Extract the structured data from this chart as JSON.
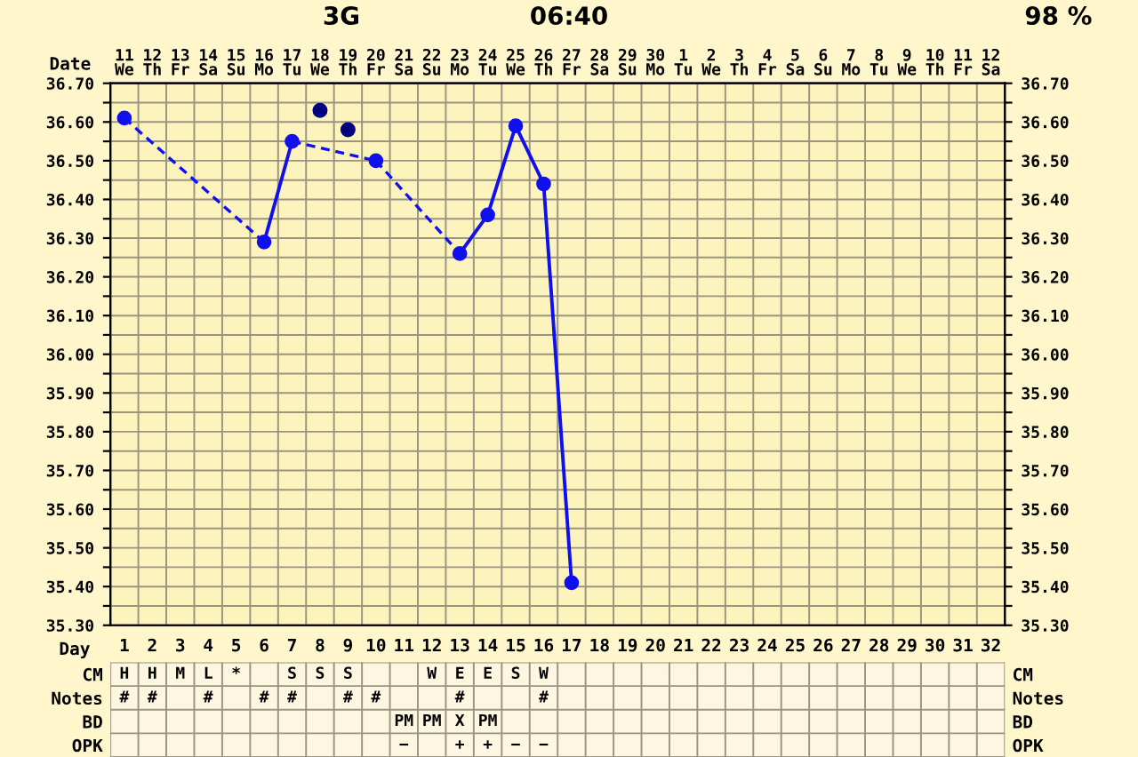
{
  "chart_data": [
    {
      "type": "line",
      "xlabel": "Date",
      "annotations": [
        "06:40",
        "3G",
        "98 %"
      ],
      "categories": [
        "11\nWe",
        "12\nTh",
        "13\nFr",
        "14\nSa",
        "15\nSu",
        "16\nMo",
        "17\nTu",
        "18\nWe",
        "19\nTh",
        "20\nFr",
        "21\nSa",
        "22\nSu",
        "23\nMo",
        "24\nTu",
        "25\nWe",
        "26\nTh",
        "27\nFr",
        "28\nSa",
        "29\nSu",
        "30\nMo",
        "1\nTu",
        "2\nWe",
        "3\nTh",
        "4\nFr",
        "5\nSa",
        "6\nSu",
        "7\nMo",
        "8\nTu",
        "9\nWe",
        "10\nTh",
        "11\nFr",
        "12\nSa"
      ],
      "ylim": [
        35.3,
        36.7
      ],
      "yticks": [
        {
          "value": 35.3,
          "label": "35.30"
        },
        {
          "value": 35.35,
          "label": null
        },
        {
          "value": 35.4,
          "label": "35.40"
        },
        {
          "value": 35.45,
          "label": null
        },
        {
          "value": 35.5,
          "label": "35.50"
        },
        {
          "value": 35.55,
          "label": null
        },
        {
          "value": 35.6,
          "label": "35.60"
        },
        {
          "value": 35.65,
          "label": null
        },
        {
          "value": 35.7,
          "label": "35.70"
        },
        {
          "value": 35.75,
          "label": null
        },
        {
          "value": 35.8,
          "label": "35.80"
        },
        {
          "value": 35.85,
          "label": null
        },
        {
          "value": 35.9,
          "label": "35.90"
        },
        {
          "value": 35.95,
          "label": null
        },
        {
          "value": 36.0,
          "label": "36.00"
        },
        {
          "value": 36.05,
          "label": null
        },
        {
          "value": 36.1,
          "label": "36.10"
        },
        {
          "value": 36.15,
          "label": null
        },
        {
          "value": 36.2,
          "label": "36.20"
        },
        {
          "value": 36.25,
          "label": null
        },
        {
          "value": 36.3,
          "label": "36.30"
        },
        {
          "value": 36.35,
          "label": null
        },
        {
          "value": 36.4,
          "label": "36.40"
        },
        {
          "value": 36.45,
          "label": null
        },
        {
          "value": 36.5,
          "label": "36.50"
        },
        {
          "value": 36.55,
          "label": null
        },
        {
          "value": 36.6,
          "label": "36.60"
        },
        {
          "value": 36.65,
          "label": null
        },
        {
          "value": 36.7,
          "label": "36.70"
        }
      ],
      "y2lim": [
        35.3,
        36.7
      ],
      "y2ticks": [
        {
          "value": 35.3,
          "label": "35.30"
        },
        {
          "value": 35.35,
          "label": null
        },
        {
          "value": 35.4,
          "label": "35.40"
        },
        {
          "value": 35.45,
          "label": null
        },
        {
          "value": 35.5,
          "label": "35.50"
        },
        {
          "value": 35.55,
          "label": null
        },
        {
          "value": 35.6,
          "label": "35.60"
        },
        {
          "value": 35.65,
          "label": null
        },
        {
          "value": 35.7,
          "label": "35.70"
        },
        {
          "value": 35.75,
          "label": null
        },
        {
          "value": 35.8,
          "label": "35.80"
        },
        {
          "value": 35.85,
          "label": null
        },
        {
          "value": 35.9,
          "label": "35.90"
        },
        {
          "value": 35.95,
          "label": null
        },
        {
          "value": 36.0,
          "label": "36.00"
        },
        {
          "value": 36.05,
          "label": null
        },
        {
          "value": 36.1,
          "label": "36.10"
        },
        {
          "value": 36.15,
          "label": null
        },
        {
          "value": 36.2,
          "label": "36.20"
        },
        {
          "value": 36.25,
          "label": null
        },
        {
          "value": 36.3,
          "label": "36.30"
        },
        {
          "value": 36.35,
          "label": null
        },
        {
          "value": 36.4,
          "label": "36.40"
        },
        {
          "value": 36.45,
          "label": null
        },
        {
          "value": 36.5,
          "label": "36.50"
        },
        {
          "value": 36.55,
          "label": null
        },
        {
          "value": 36.6,
          "label": "36.60"
        },
        {
          "value": 36.65,
          "label": null
        },
        {
          "value": 36.7,
          "label": "36.70"
        }
      ],
      "grid": true,
      "marker": "circle",
      "series": [
        {
          "type": "line",
          "line_style": "solid",
          "color": "#1010ee",
          "values": [
            36.61,
            null,
            null,
            null,
            null,
            36.29,
            36.55,
            null,
            null,
            36.5,
            null,
            null,
            36.26,
            36.36,
            36.59,
            36.44,
            35.41,
            null,
            null,
            null,
            null,
            null,
            null,
            null,
            null,
            null,
            null,
            null,
            null,
            null,
            null,
            null
          ]
        },
        {
          "type": "scatter",
          "color": "#000080",
          "values": [
            null,
            null,
            null,
            null,
            null,
            null,
            null,
            36.63,
            36.58,
            null,
            null,
            null,
            null,
            null,
            null,
            null,
            null,
            null,
            null,
            null,
            null,
            null,
            null,
            null,
            null,
            null,
            null,
            null,
            null,
            null,
            null,
            null
          ]
        }
      ]
    },
    {
      "type": "heatmap",
      "tick_labels": "x",
      "xlabel": "Day",
      "categories": [
        "1",
        "2",
        "3",
        "4",
        "5",
        "6",
        "7",
        "8",
        "9",
        "10",
        "11",
        "12",
        "13",
        "14",
        "15",
        "16",
        "17",
        "18",
        "19",
        "20",
        "21",
        "22",
        "23",
        "24",
        "25",
        "26",
        "27",
        "28",
        "29",
        "30",
        "31",
        "32"
      ],
      "y_categories": [
        "CM",
        "Notes",
        "BD",
        "OPK"
      ],
      "y2_categories": [
        "CM",
        "Notes",
        "BD",
        "OPK"
      ],
      "cells": [
        [
          null,
          null,
          null,
          null,
          null,
          null,
          null,
          null,
          null,
          null,
          null,
          null,
          null,
          null,
          null,
          null,
          null,
          null,
          null,
          null,
          null,
          null,
          null,
          null,
          null,
          null,
          null,
          null,
          null,
          null,
          null,
          null
        ],
        [
          null,
          null,
          null,
          null,
          null,
          null,
          null,
          null,
          null,
          null,
          null,
          null,
          null,
          null,
          null,
          null,
          null,
          null,
          null,
          null,
          null,
          null,
          null,
          null,
          null,
          null,
          null,
          null,
          null,
          null,
          null,
          null
        ],
        [
          null,
          null,
          null,
          null,
          null,
          null,
          null,
          null,
          null,
          null,
          null,
          null,
          null,
          null,
          null,
          null,
          null,
          null,
          null,
          null,
          null,
          null,
          null,
          null,
          null,
          null,
          null,
          null,
          null,
          null,
          null,
          null
        ],
        [
          null,
          null,
          null,
          null,
          null,
          null,
          null,
          null,
          null,
          null,
          null,
          null,
          null,
          null,
          null,
          null,
          null,
          null,
          null,
          null,
          null,
          null,
          null,
          null,
          null,
          null,
          null,
          null,
          null,
          null,
          null,
          null
        ]
      ],
      "cell_labels": [
        [
          "H",
          "H",
          "M",
          "L",
          "*",
          null,
          "S",
          "S",
          "S",
          null,
          null,
          "W",
          "E",
          "E",
          "S",
          "W",
          null,
          null,
          null,
          null,
          null,
          null,
          null,
          null,
          null,
          null,
          null,
          null,
          null,
          null,
          null,
          null
        ],
        [
          "#",
          "#",
          null,
          "#",
          null,
          "#",
          "#",
          null,
          "#",
          "#",
          null,
          null,
          "#",
          null,
          null,
          "#",
          null,
          null,
          null,
          null,
          null,
          null,
          null,
          null,
          null,
          null,
          null,
          null,
          null,
          null,
          null,
          null
        ],
        [
          null,
          null,
          null,
          null,
          null,
          null,
          null,
          null,
          null,
          null,
          "PM",
          "PM",
          "X",
          "PM",
          null,
          null,
          null,
          null,
          null,
          null,
          null,
          null,
          null,
          null,
          null,
          null,
          null,
          null,
          null,
          null,
          null,
          null
        ],
        [
          null,
          null,
          null,
          null,
          null,
          null,
          null,
          null,
          null,
          null,
          "−",
          null,
          "+",
          "+",
          "−",
          "−",
          null,
          null,
          null,
          null,
          null,
          null,
          null,
          null,
          null,
          null,
          null,
          null,
          null,
          null,
          null,
          null
        ]
      ]
    }
  ]
}
